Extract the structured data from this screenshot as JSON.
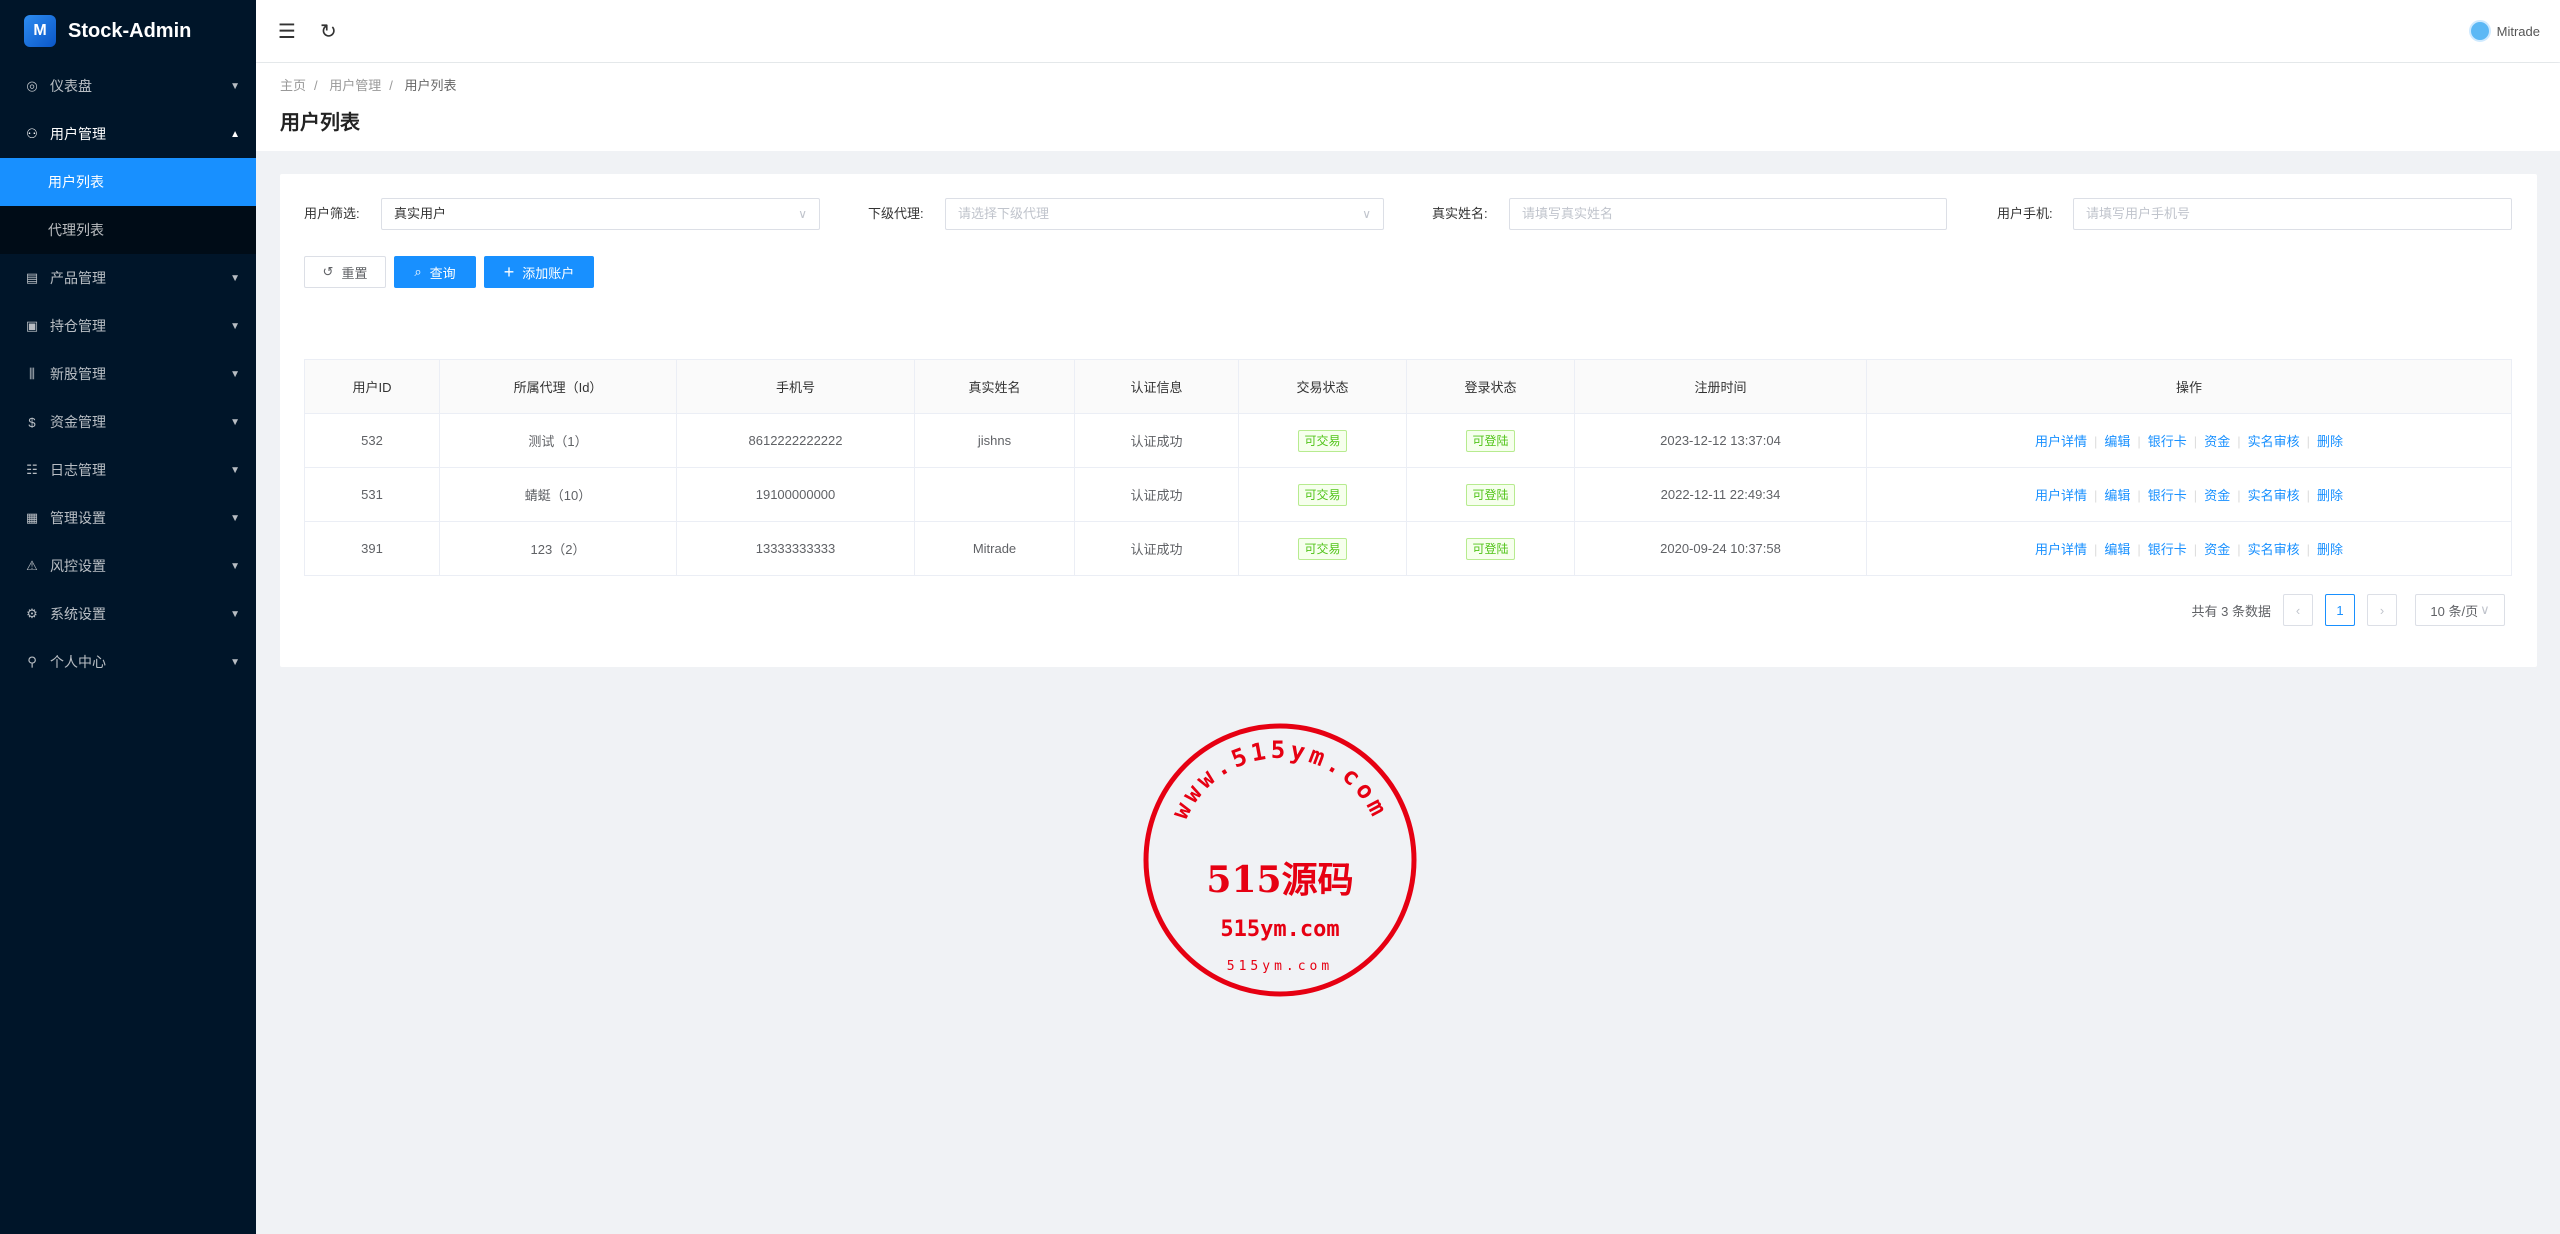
{
  "app": {
    "title": "Stock-Admin"
  },
  "sidebar": {
    "items": [
      {
        "label": "仪表盘",
        "icon": "dashboard-icon"
      },
      {
        "label": "用户管理",
        "icon": "user-manage-icon",
        "open": true,
        "children": [
          {
            "label": "用户列表",
            "active": true
          },
          {
            "label": "代理列表"
          }
        ]
      },
      {
        "label": "产品管理",
        "icon": "chart-icon"
      },
      {
        "label": "持仓管理",
        "icon": "position-icon"
      },
      {
        "label": "新股管理",
        "icon": "ipo-icon"
      },
      {
        "label": "资金管理",
        "icon": "dollar-icon"
      },
      {
        "label": "日志管理",
        "icon": "log-icon"
      },
      {
        "label": "管理设置",
        "icon": "settings-panel-icon"
      },
      {
        "label": "风控设置",
        "icon": "warning-icon"
      },
      {
        "label": "系统设置",
        "icon": "gear-icon"
      },
      {
        "label": "个人中心",
        "icon": "person-icon"
      }
    ]
  },
  "header": {
    "user": "Mitrade"
  },
  "breadcrumb": [
    "主页",
    "用户管理",
    "用户列表"
  ],
  "page_title": "用户列表",
  "filters": {
    "user_filter": {
      "label": "用户筛选:",
      "value": "真实用户"
    },
    "agent": {
      "label": "下级代理:",
      "placeholder": "请选择下级代理"
    },
    "real_name": {
      "label": "真实姓名:",
      "placeholder": "请填写真实姓名"
    },
    "phone": {
      "label": "用户手机:",
      "placeholder": "请填写用户手机号"
    }
  },
  "buttons": {
    "reset": "重置",
    "search": "查询",
    "add": "添加账户"
  },
  "table": {
    "columns": [
      "用户ID",
      "所属代理（Id）",
      "手机号",
      "真实姓名",
      "认证信息",
      "交易状态",
      "登录状态",
      "注册时间",
      "操作"
    ],
    "rows": [
      [
        "532",
        "测试（1）",
        "8612222222222",
        "jishns",
        "认证成功",
        "可交易",
        "可登陆",
        "2023-12-12 13:37:04"
      ],
      [
        "531",
        "蜻蜓（10）",
        "19100000000",
        "",
        "认证成功",
        "可交易",
        "可登陆",
        "2022-12-11 22:49:34"
      ],
      [
        "391",
        "123（2）",
        "13333333333",
        "Mitrade",
        "认证成功",
        "可交易",
        "可登陆",
        "2020-09-24 10:37:58"
      ]
    ],
    "actions": [
      "用户详情",
      "编辑",
      "银行卡",
      "资金",
      "实名审核",
      "删除"
    ]
  },
  "pagination": {
    "total_text": "共有 3 条数据",
    "current_page": "1",
    "page_size": "10 条/页"
  },
  "watermark": {
    "ring_text": "www.515ym.com",
    "center": "515源码",
    "sub": "515ym.com",
    "bottom": "515ym.com",
    "color": "#e60012"
  },
  "colors": {
    "primary": "#1890ff",
    "sidebar": "#001529",
    "success": "#52c41a"
  }
}
